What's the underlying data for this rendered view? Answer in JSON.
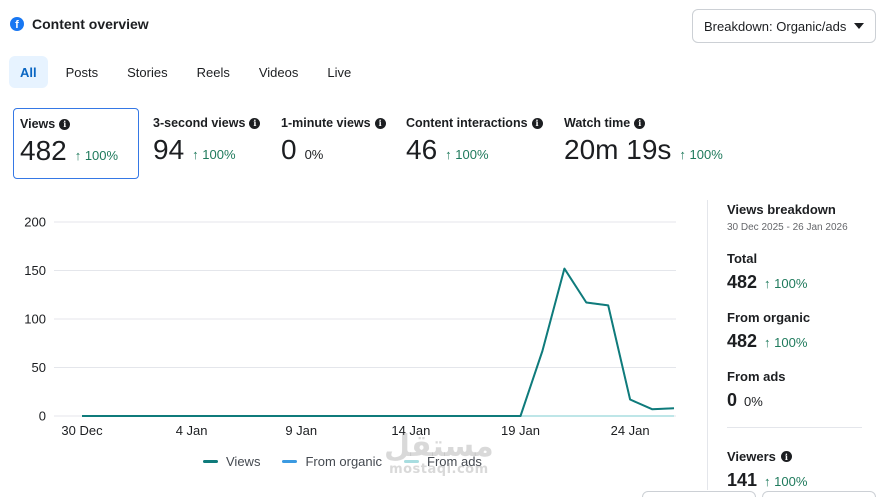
{
  "header": {
    "title": "Content overview",
    "icon": "facebook-icon"
  },
  "breakdown": {
    "label": "Breakdown: Organic/ads"
  },
  "tabs": [
    {
      "label": "All",
      "active": true
    },
    {
      "label": "Posts"
    },
    {
      "label": "Stories"
    },
    {
      "label": "Reels"
    },
    {
      "label": "Videos"
    },
    {
      "label": "Live"
    }
  ],
  "metrics": [
    {
      "label": "Views",
      "value": "482",
      "change": "↑ 100%"
    },
    {
      "label": "3-second views",
      "value": "94",
      "change": "↑ 100%"
    },
    {
      "label": "1-minute views",
      "value": "0",
      "change": "0%"
    },
    {
      "label": "Content interactions",
      "value": "46",
      "change": "↑ 100%"
    },
    {
      "label": "Watch time",
      "value": "20m 19s",
      "change": "↑ 100%"
    }
  ],
  "chart_data": {
    "type": "line",
    "x": [
      "30 Dec",
      "31 Dec",
      "1 Jan",
      "2 Jan",
      "3 Jan",
      "4 Jan",
      "5 Jan",
      "6 Jan",
      "7 Jan",
      "8 Jan",
      "9 Jan",
      "10 Jan",
      "11 Jan",
      "12 Jan",
      "13 Jan",
      "14 Jan",
      "15 Jan",
      "16 Jan",
      "17 Jan",
      "18 Jan",
      "19 Jan",
      "20 Jan",
      "21 Jan",
      "22 Jan",
      "23 Jan",
      "24 Jan",
      "25 Jan",
      "26 Jan"
    ],
    "x_tick_labels": [
      "30 Dec",
      "4 Jan",
      "9 Jan",
      "14 Jan",
      "19 Jan",
      "24 Jan"
    ],
    "y_ticks": [
      "0",
      "50",
      "100",
      "150",
      "200"
    ],
    "ylim": [
      0,
      200
    ],
    "grid": true,
    "series": [
      {
        "name": "Views",
        "color": "#0f7b7b",
        "values": [
          0,
          0,
          0,
          0,
          0,
          0,
          0,
          0,
          0,
          0,
          0,
          0,
          0,
          0,
          0,
          0,
          0,
          0,
          0,
          0,
          0,
          67,
          152,
          117,
          114,
          17,
          7,
          8
        ]
      },
      {
        "name": "From organic",
        "color": "#3b9ae1",
        "values": [
          0,
          0,
          0,
          0,
          0,
          0,
          0,
          0,
          0,
          0,
          0,
          0,
          0,
          0,
          0,
          0,
          0,
          0,
          0,
          0,
          0,
          67,
          152,
          117,
          114,
          17,
          7,
          8
        ]
      },
      {
        "name": "From ads",
        "color": "#a8dde0",
        "values": [
          0,
          0,
          0,
          0,
          0,
          0,
          0,
          0,
          0,
          0,
          0,
          0,
          0,
          0,
          0,
          0,
          0,
          0,
          0,
          0,
          0,
          0,
          0,
          0,
          0,
          0,
          0,
          0
        ]
      }
    ],
    "legend_position": "bottom"
  },
  "sidebar": {
    "title": "Views breakdown",
    "date_range": "30 Dec 2025 - 26 Jan 2026",
    "blocks": [
      {
        "label": "Total",
        "value": "482",
        "change": "↑ 100%"
      },
      {
        "label": "From organic",
        "value": "482",
        "change": "↑ 100%"
      },
      {
        "label": "From ads",
        "value": "0",
        "change": "0%"
      },
      {
        "label": "Viewers",
        "value": "141",
        "change": "↑ 100%"
      }
    ]
  },
  "watermark": {
    "arabic": "مستقل",
    "latin": "mostaql.com"
  }
}
